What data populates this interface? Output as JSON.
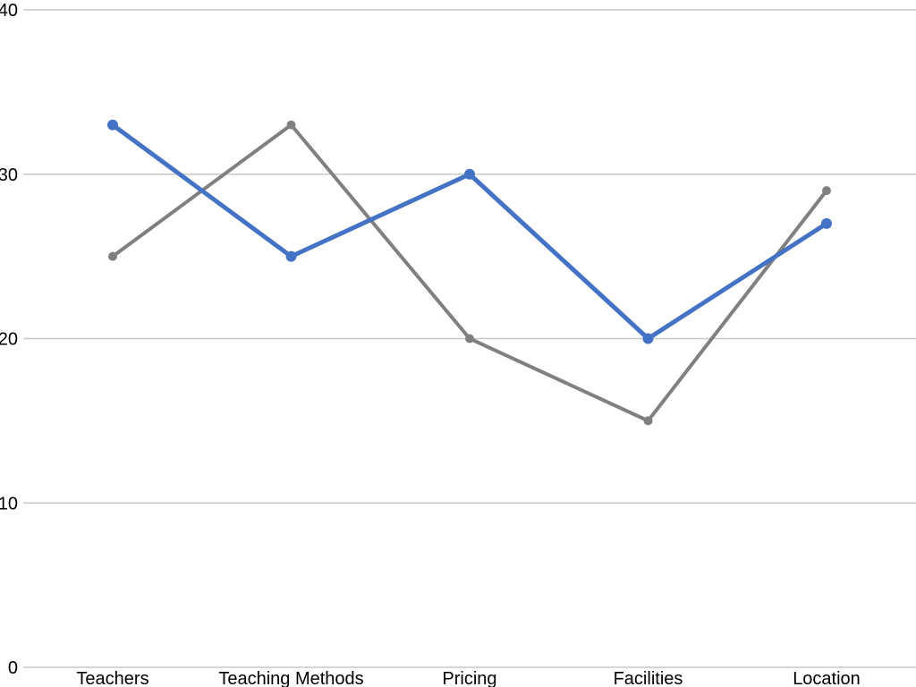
{
  "chart_data": {
    "type": "line",
    "categories": [
      "Teachers",
      "Teaching Methods",
      "Pricing",
      "Facilities",
      "Location"
    ],
    "series": [
      {
        "values": [
          33,
          25,
          30,
          20,
          27
        ],
        "color": "#4472c4"
      },
      {
        "values": [
          25,
          33,
          20,
          15,
          29
        ],
        "color": "#808080"
      }
    ],
    "y_ticks": [
      "0",
      "10",
      "20",
      "30",
      "40"
    ],
    "ylim": [
      0,
      40
    ],
    "grid": true,
    "legend": "none",
    "title": "",
    "xlabel": "",
    "ylabel": ""
  }
}
